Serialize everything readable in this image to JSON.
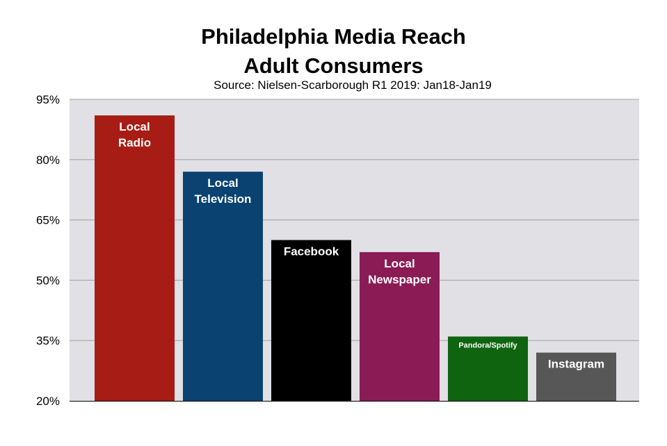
{
  "chart_data": {
    "type": "bar",
    "title": [
      "Philadelphia Media Reach",
      "Adult Consumers"
    ],
    "subtitle": "Source: Nielsen-Scarborough R1 2019: Jan18-Jan19",
    "ylim": [
      20,
      95
    ],
    "yticks": [
      20,
      35,
      50,
      65,
      80,
      95
    ],
    "ytick_labels": [
      "20%",
      "35%",
      "50%",
      "65%",
      "80%",
      "95%"
    ],
    "grid": true,
    "categories": [
      {
        "label": [
          "Local",
          "Radio"
        ],
        "value": 91,
        "color": "#a71c14",
        "label_size": 17
      },
      {
        "label": [
          "Local",
          "Television"
        ],
        "value": 77,
        "color": "#0a4271",
        "label_size": 17
      },
      {
        "label": [
          "Facebook"
        ],
        "value": 60,
        "color": "#000000",
        "label_size": 17
      },
      {
        "label": [
          "Local",
          "Newspaper"
        ],
        "value": 57,
        "color": "#8b1b55",
        "label_size": 17
      },
      {
        "label": [
          "Pandora/Spotify"
        ],
        "value": 36,
        "color": "#0f6410",
        "label_size": 11
      },
      {
        "label": [
          "Instagram"
        ],
        "value": 32,
        "color": "#575757",
        "label_size": 17
      }
    ]
  }
}
